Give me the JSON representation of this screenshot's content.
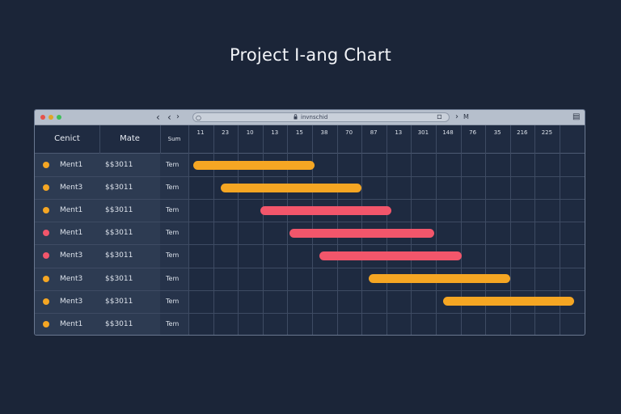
{
  "page": {
    "title": "Project I-ang Chart"
  },
  "window": {
    "address": "invnschid",
    "right_nav_label": "M"
  },
  "table": {
    "columns": [
      "Cenict",
      "Mate",
      "Sum"
    ],
    "rows": [
      {
        "name": "Ment1",
        "amount": "$$3011",
        "type": "Tem",
        "status": "amber"
      },
      {
        "name": "Ment3",
        "amount": "$$3011",
        "type": "Tem",
        "status": "amber"
      },
      {
        "name": "Ment1",
        "amount": "$$3011",
        "type": "Tem",
        "status": "amber"
      },
      {
        "name": "Ment1",
        "amount": "$$3011",
        "type": "Tem",
        "status": "red"
      },
      {
        "name": "Ment3",
        "amount": "$$3011",
        "type": "Tem",
        "status": "red"
      },
      {
        "name": "Ment3",
        "amount": "$$3011",
        "type": "Tem",
        "status": "amber"
      },
      {
        "name": "Ment3",
        "amount": "$$3011",
        "type": "Tem",
        "status": "amber"
      },
      {
        "name": "Ment1",
        "amount": "$$3011",
        "type": "Tem",
        "status": "amber"
      }
    ]
  },
  "timeline": {
    "ticks": [
      "11",
      "23",
      "10",
      "13",
      "15",
      "38",
      "70",
      "87",
      "13",
      "301",
      "148",
      "76",
      "35",
      "216",
      "225"
    ],
    "tasks": [
      {
        "start": 0.1,
        "end": 5.0,
        "color": "amber"
      },
      {
        "start": 1.2,
        "end": 6.9,
        "color": "amber"
      },
      {
        "start": 2.8,
        "end": 8.1,
        "color": "red"
      },
      {
        "start": 4.0,
        "end": 9.85,
        "color": "red"
      },
      {
        "start": 5.2,
        "end": 10.95,
        "color": "red"
      },
      {
        "start": 7.2,
        "end": 12.9,
        "color": "amber"
      },
      {
        "start": 10.2,
        "end": 15.5,
        "color": "amber"
      }
    ]
  },
  "colors": {
    "amber": "#f5a623",
    "red": "#f2566b",
    "traffic_red": "#e5534b",
    "traffic_yellow": "#e0a526",
    "traffic_green": "#3fbf5a",
    "background": "#1b2538"
  },
  "icons": {
    "back": "chevron-left-icon",
    "forward": "chevron-left-icon",
    "search": "search-icon",
    "lock": "lock-icon",
    "share": "share-icon",
    "menu": "sidebar-icon"
  }
}
